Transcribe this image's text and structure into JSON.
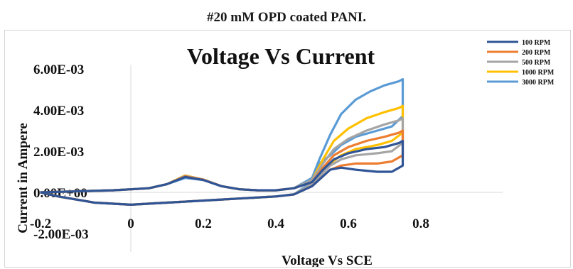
{
  "caption": "#20 mM OPD coated PANI.",
  "chart_data": {
    "type": "line",
    "title": "Voltage Vs Current",
    "xlabel": "Voltage Vs SCE",
    "ylabel": "Current in Ampere",
    "xlim": [
      -0.2,
      0.8
    ],
    "ylim": [
      -0.002,
      0.006
    ],
    "x_ticks": [
      -0.2,
      0,
      0.2,
      0.4,
      0.6,
      0.8
    ],
    "x_tick_labels": [
      "-0.2",
      "0",
      "0.2",
      "0.4",
      "0.6",
      "0.8"
    ],
    "y_ticks": [
      0.006,
      0.004,
      0.002,
      0.0,
      -0.002
    ],
    "y_tick_labels": [
      "6.00E-03",
      "4.00E-03",
      "2.00E-03",
      "0.00E+00",
      "-2.00E-03"
    ],
    "legend_position": "top-right",
    "grid": false,
    "series": [
      {
        "name": "100 RPM",
        "color": "#2F5597",
        "forward": [
          [
            -0.25,
            0.0
          ],
          [
            -0.15,
            5e-05
          ],
          [
            -0.05,
            0.0001
          ],
          [
            0.0,
            0.00015
          ],
          [
            0.05,
            0.0002
          ],
          [
            0.1,
            0.0004
          ],
          [
            0.15,
            0.00075
          ],
          [
            0.2,
            0.0006
          ],
          [
            0.25,
            0.0003
          ],
          [
            0.3,
            0.00015
          ],
          [
            0.35,
            0.0001
          ],
          [
            0.4,
            0.0001
          ],
          [
            0.45,
            0.0002
          ],
          [
            0.5,
            0.0005
          ],
          [
            0.53,
            0.0011
          ],
          [
            0.56,
            0.0016
          ],
          [
            0.6,
            0.0019
          ],
          [
            0.65,
            0.0021
          ],
          [
            0.7,
            0.0022
          ],
          [
            0.74,
            0.0024
          ],
          [
            0.75,
            0.0025
          ]
        ],
        "reverse": [
          [
            0.75,
            0.0025
          ],
          [
            0.75,
            0.0013
          ],
          [
            0.72,
            0.001
          ],
          [
            0.68,
            0.001
          ],
          [
            0.62,
            0.0011
          ],
          [
            0.58,
            0.0012
          ],
          [
            0.55,
            0.0011
          ],
          [
            0.5,
            0.0003
          ],
          [
            0.45,
            -0.0001
          ],
          [
            0.4,
            -0.0002
          ],
          [
            0.3,
            -0.0003
          ],
          [
            0.2,
            -0.0004
          ],
          [
            0.1,
            -0.0005
          ],
          [
            0.0,
            -0.0006
          ],
          [
            -0.1,
            -0.0005
          ],
          [
            -0.2,
            -0.0002
          ],
          [
            -0.25,
            0.0
          ]
        ]
      },
      {
        "name": "200 RPM",
        "color": "#ED7D31",
        "forward": [
          [
            -0.25,
            0.0
          ],
          [
            -0.15,
            5e-05
          ],
          [
            -0.05,
            0.0001
          ],
          [
            0.0,
            0.00015
          ],
          [
            0.05,
            0.0002
          ],
          [
            0.1,
            0.0004
          ],
          [
            0.15,
            0.00078
          ],
          [
            0.2,
            0.00062
          ],
          [
            0.25,
            0.0003
          ],
          [
            0.3,
            0.00015
          ],
          [
            0.35,
            0.0001
          ],
          [
            0.4,
            0.0001
          ],
          [
            0.45,
            0.0002
          ],
          [
            0.5,
            0.0005
          ],
          [
            0.53,
            0.0012
          ],
          [
            0.56,
            0.0018
          ],
          [
            0.6,
            0.0022
          ],
          [
            0.65,
            0.0025
          ],
          [
            0.7,
            0.0027
          ],
          [
            0.74,
            0.0029
          ],
          [
            0.75,
            0.003
          ]
        ],
        "reverse": [
          [
            0.75,
            0.003
          ],
          [
            0.75,
            0.0018
          ],
          [
            0.72,
            0.0015
          ],
          [
            0.68,
            0.0014
          ],
          [
            0.62,
            0.0014
          ],
          [
            0.58,
            0.0013
          ],
          [
            0.55,
            0.0011
          ],
          [
            0.5,
            0.0003
          ],
          [
            0.45,
            -0.0001
          ],
          [
            0.4,
            -0.0002
          ],
          [
            0.3,
            -0.0003
          ],
          [
            0.2,
            -0.0004
          ],
          [
            0.1,
            -0.0005
          ],
          [
            0.0,
            -0.0006
          ],
          [
            -0.1,
            -0.0005
          ],
          [
            -0.2,
            -0.0002
          ],
          [
            -0.25,
            0.0
          ]
        ]
      },
      {
        "name": "500 RPM",
        "color": "#A5A5A5",
        "forward": [
          [
            -0.25,
            0.0
          ],
          [
            -0.15,
            5e-05
          ],
          [
            -0.05,
            0.0001
          ],
          [
            0.0,
            0.00015
          ],
          [
            0.05,
            0.0002
          ],
          [
            0.1,
            0.0004
          ],
          [
            0.15,
            0.0008
          ],
          [
            0.2,
            0.00062
          ],
          [
            0.25,
            0.0003
          ],
          [
            0.3,
            0.00015
          ],
          [
            0.35,
            0.0001
          ],
          [
            0.4,
            0.0001
          ],
          [
            0.45,
            0.0002
          ],
          [
            0.5,
            0.0006
          ],
          [
            0.53,
            0.0014
          ],
          [
            0.56,
            0.0021
          ],
          [
            0.6,
            0.0026
          ],
          [
            0.65,
            0.003
          ],
          [
            0.7,
            0.0033
          ],
          [
            0.74,
            0.0035
          ],
          [
            0.75,
            0.0036
          ]
        ],
        "reverse": [
          [
            0.75,
            0.0036
          ],
          [
            0.75,
            0.0024
          ],
          [
            0.72,
            0.002
          ],
          [
            0.68,
            0.0019
          ],
          [
            0.62,
            0.0018
          ],
          [
            0.58,
            0.0016
          ],
          [
            0.55,
            0.0013
          ],
          [
            0.5,
            0.0004
          ],
          [
            0.45,
            -0.0001
          ],
          [
            0.4,
            -0.0002
          ],
          [
            0.3,
            -0.0003
          ],
          [
            0.2,
            -0.0004
          ],
          [
            0.1,
            -0.0005
          ],
          [
            0.0,
            -0.0006
          ],
          [
            -0.1,
            -0.0005
          ],
          [
            -0.2,
            -0.0002
          ],
          [
            -0.25,
            0.0
          ]
        ]
      },
      {
        "name": "1000 RPM",
        "color": "#FFC000",
        "forward": [
          [
            -0.25,
            0.0
          ],
          [
            -0.15,
            5e-05
          ],
          [
            -0.05,
            0.0001
          ],
          [
            0.0,
            0.00015
          ],
          [
            0.05,
            0.0002
          ],
          [
            0.1,
            0.0004
          ],
          [
            0.15,
            0.00082
          ],
          [
            0.2,
            0.00062
          ],
          [
            0.25,
            0.0003
          ],
          [
            0.3,
            0.00015
          ],
          [
            0.35,
            0.0001
          ],
          [
            0.4,
            0.0001
          ],
          [
            0.45,
            0.0002
          ],
          [
            0.5,
            0.0006
          ],
          [
            0.53,
            0.0016
          ],
          [
            0.56,
            0.0025
          ],
          [
            0.6,
            0.0031
          ],
          [
            0.65,
            0.0036
          ],
          [
            0.7,
            0.0039
          ],
          [
            0.74,
            0.0041
          ],
          [
            0.75,
            0.0042
          ]
        ],
        "reverse": [
          [
            0.75,
            0.0042
          ],
          [
            0.75,
            0.0029
          ],
          [
            0.72,
            0.0025
          ],
          [
            0.68,
            0.0023
          ],
          [
            0.62,
            0.0021
          ],
          [
            0.58,
            0.0018
          ],
          [
            0.55,
            0.0014
          ],
          [
            0.5,
            0.0004
          ],
          [
            0.45,
            -0.0001
          ],
          [
            0.4,
            -0.0002
          ],
          [
            0.3,
            -0.0003
          ],
          [
            0.2,
            -0.0004
          ],
          [
            0.1,
            -0.0005
          ],
          [
            0.0,
            -0.0006
          ],
          [
            -0.1,
            -0.0005
          ],
          [
            -0.2,
            -0.0002
          ],
          [
            -0.25,
            0.0
          ]
        ]
      },
      {
        "name": "3000 RPM",
        "color": "#5B9BD5",
        "forward": [
          [
            -0.25,
            0.0
          ],
          [
            -0.15,
            5e-05
          ],
          [
            -0.05,
            0.0001
          ],
          [
            0.0,
            0.00015
          ],
          [
            0.05,
            0.0002
          ],
          [
            0.1,
            0.0004
          ],
          [
            0.15,
            0.0007
          ],
          [
            0.2,
            0.0006
          ],
          [
            0.25,
            0.0003
          ],
          [
            0.3,
            0.00015
          ],
          [
            0.35,
            0.0001
          ],
          [
            0.4,
            0.0001
          ],
          [
            0.45,
            0.0002
          ],
          [
            0.5,
            0.0007
          ],
          [
            0.52,
            0.0016
          ],
          [
            0.55,
            0.0028
          ],
          [
            0.58,
            0.0038
          ],
          [
            0.62,
            0.0045
          ],
          [
            0.66,
            0.0049
          ],
          [
            0.7,
            0.0052
          ],
          [
            0.74,
            0.0054
          ],
          [
            0.75,
            0.0055
          ]
        ],
        "reverse": [
          [
            0.75,
            0.0055
          ],
          [
            0.75,
            0.0037
          ],
          [
            0.72,
            0.0032
          ],
          [
            0.68,
            0.003
          ],
          [
            0.62,
            0.0027
          ],
          [
            0.58,
            0.0023
          ],
          [
            0.55,
            0.0018
          ],
          [
            0.52,
            0.0014
          ],
          [
            0.5,
            0.0005
          ],
          [
            0.45,
            -0.0001
          ],
          [
            0.4,
            -0.0002
          ],
          [
            0.3,
            -0.0003
          ],
          [
            0.2,
            -0.0004
          ],
          [
            0.1,
            -0.0005
          ],
          [
            0.0,
            -0.0006
          ],
          [
            -0.1,
            -0.0005
          ],
          [
            -0.2,
            -0.0002
          ],
          [
            -0.25,
            0.0
          ]
        ]
      }
    ]
  }
}
